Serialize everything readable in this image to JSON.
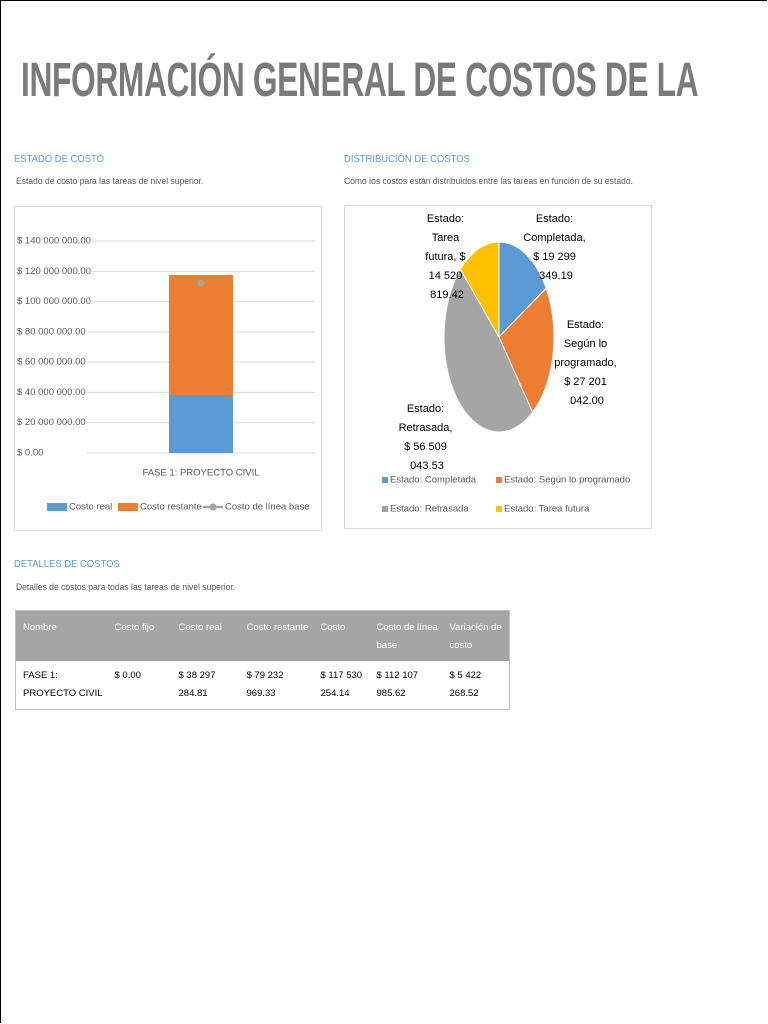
{
  "title": "INFORMACIÓN GENERAL DE COSTOS DE LA",
  "chart_data": [
    {
      "type": "bar",
      "stacked": true,
      "title": "ESTADO DE COSTO",
      "subtitle": "Estado de costo para las tareas de nivel superior.",
      "categories": [
        "FASE 1: PROYECTO CIVIL"
      ],
      "series": [
        {
          "name": "Costo real",
          "color": "#5b9bd5",
          "values": [
            38297284.81
          ]
        },
        {
          "name": "Costo restante",
          "color": "#ed7d31",
          "values": [
            79232969.33
          ]
        },
        {
          "name": "Costo de línea base",
          "color": "#a5a5a5",
          "type": "line",
          "values": [
            112107985.62
          ]
        }
      ],
      "ylim": [
        0,
        140000000
      ],
      "yticks": [
        {
          "value": 0,
          "label": "$ 0.00"
        },
        {
          "value": 20000000,
          "label": "$ 20 000 000.00"
        },
        {
          "value": 40000000,
          "label": "$ 40 000 000.00"
        },
        {
          "value": 60000000,
          "label": "$ 60 000 000.00"
        },
        {
          "value": 80000000,
          "label": "$ 80 000 000.00"
        },
        {
          "value": 100000000,
          "label": "$ 100 000 000.00"
        },
        {
          "value": 120000000,
          "label": "$ 120 000 000.00"
        },
        {
          "value": 140000000,
          "label": "$ 140 000 000.00"
        }
      ],
      "grid": true,
      "legend": "bottom"
    },
    {
      "type": "pie",
      "title": "DISTRIBUCIÓN DE COSTOS",
      "subtitle": "Cómo los costos están distribuidos entre las tareas en función de su estado.",
      "categories": [
        "Estado: Completada",
        "Estado: Según lo programado",
        "Estado: Retrasada",
        "Estado: Tarea futura"
      ],
      "values": [
        19299349.19,
        27201042.0,
        56509043.53,
        14520819.42
      ],
      "value_labels": [
        "Estado: Completada, $ 19 299 349.19",
        "Estado: Según lo programado, $ 27 201 042.00",
        "Estado: Retrasada, $ 56 509 043.53",
        "Estado: Tarea futura, $ 14 520 819.42"
      ],
      "colors": [
        "#5b9bd5",
        "#ed7d31",
        "#a5a5a5",
        "#ffc000"
      ],
      "legend": "bottom"
    }
  ],
  "details": {
    "title": "DETALLES DE COSTOS",
    "subtitle": "Detalles de costos para todas las tareas de nivel superior.",
    "table": {
      "columns": [
        "Nombre",
        "Costo fijo",
        "Costo real",
        "Costo restante",
        "Costo",
        "Costo de línea base",
        "Variación de costo"
      ],
      "rows": [
        [
          "FASE 1: PROYECTO CIVIL",
          "$ 0.00",
          "$ 38 297 284.81",
          "$ 79 232 969.33",
          "$ 117 530 254.14",
          "$ 112 107 985.62",
          "$ 5 422 268.52"
        ]
      ]
    }
  }
}
